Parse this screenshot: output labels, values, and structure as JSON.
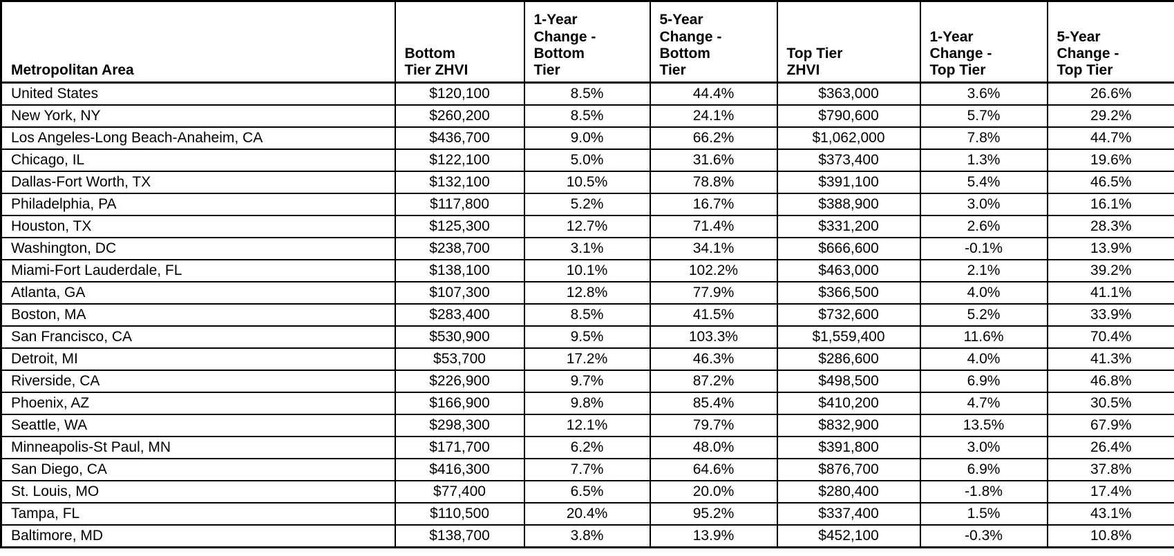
{
  "chart_data": {
    "type": "table",
    "columns": [
      "Metropolitan Area",
      "Bottom\nTier ZHVI",
      "1-Year\nChange -\nBottom\nTier",
      "5-Year\nChange -\nBottom\nTier",
      "Top Tier\nZHVI",
      "1-Year\nChange -\nTop Tier",
      "5-Year\nChange -\nTop Tier"
    ],
    "rows": [
      [
        "United States",
        "$120,100",
        "8.5%",
        "44.4%",
        "$363,000",
        "3.6%",
        "26.6%"
      ],
      [
        "New York, NY",
        "$260,200",
        "8.5%",
        "24.1%",
        "$790,600",
        "5.7%",
        "29.2%"
      ],
      [
        "Los Angeles-Long Beach-Anaheim, CA",
        "$436,700",
        "9.0%",
        "66.2%",
        "$1,062,000",
        "7.8%",
        "44.7%"
      ],
      [
        "Chicago, IL",
        "$122,100",
        "5.0%",
        "31.6%",
        "$373,400",
        "1.3%",
        "19.6%"
      ],
      [
        "Dallas-Fort Worth, TX",
        "$132,100",
        "10.5%",
        "78.8%",
        "$391,100",
        "5.4%",
        "46.5%"
      ],
      [
        "Philadelphia, PA",
        "$117,800",
        "5.2%",
        "16.7%",
        "$388,900",
        "3.0%",
        "16.1%"
      ],
      [
        "Houston, TX",
        "$125,300",
        "12.7%",
        "71.4%",
        "$331,200",
        "2.6%",
        "28.3%"
      ],
      [
        "Washington, DC",
        "$238,700",
        "3.1%",
        "34.1%",
        "$666,600",
        "-0.1%",
        "13.9%"
      ],
      [
        "Miami-Fort Lauderdale, FL",
        "$138,100",
        "10.1%",
        "102.2%",
        "$463,000",
        "2.1%",
        "39.2%"
      ],
      [
        "Atlanta, GA",
        "$107,300",
        "12.8%",
        "77.9%",
        "$366,500",
        "4.0%",
        "41.1%"
      ],
      [
        "Boston, MA",
        "$283,400",
        "8.5%",
        "41.5%",
        "$732,600",
        "5.2%",
        "33.9%"
      ],
      [
        "San Francisco, CA",
        "$530,900",
        "9.5%",
        "103.3%",
        "$1,559,400",
        "11.6%",
        "70.4%"
      ],
      [
        "Detroit, MI",
        "$53,700",
        "17.2%",
        "46.3%",
        "$286,600",
        "4.0%",
        "41.3%"
      ],
      [
        "Riverside, CA",
        "$226,900",
        "9.7%",
        "87.2%",
        "$498,500",
        "6.9%",
        "46.8%"
      ],
      [
        "Phoenix, AZ",
        "$166,900",
        "9.8%",
        "85.4%",
        "$410,200",
        "4.7%",
        "30.5%"
      ],
      [
        "Seattle, WA",
        "$298,300",
        "12.1%",
        "79.7%",
        "$832,900",
        "13.5%",
        "67.9%"
      ],
      [
        "Minneapolis-St Paul, MN",
        "$171,700",
        "6.2%",
        "48.0%",
        "$391,800",
        "3.0%",
        "26.4%"
      ],
      [
        "San Diego, CA",
        "$416,300",
        "7.7%",
        "64.6%",
        "$876,700",
        "6.9%",
        "37.8%"
      ],
      [
        "St. Louis, MO",
        "$77,400",
        "6.5%",
        "20.0%",
        "$280,400",
        "-1.8%",
        "17.4%"
      ],
      [
        "Tampa, FL",
        "$110,500",
        "20.4%",
        "95.2%",
        "$337,400",
        "1.5%",
        "43.1%"
      ],
      [
        "Baltimore, MD",
        "$138,700",
        "3.8%",
        "13.9%",
        "$452,100",
        "-0.3%",
        "10.8%"
      ]
    ],
    "layout": {
      "grid": "on",
      "border_color": "#000000",
      "text_color": "#000000",
      "background_color": "#ffffff",
      "value_columns_alignment": "center",
      "first_column_alignment": "left"
    }
  }
}
